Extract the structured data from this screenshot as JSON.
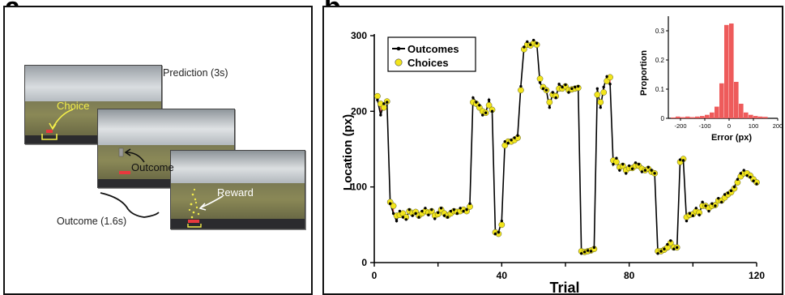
{
  "panel_a": {
    "label": "a",
    "prediction_caption": "Prediction (3s)",
    "outcome_caption": "Outcome (1.6s)",
    "choice_label": "Choice",
    "outcome_label": "Outcome",
    "reward_label": "Reward"
  },
  "panel_b": {
    "label": "b"
  },
  "colors": {
    "outcome_line": "#000000",
    "choice_fill": "#f2e51c",
    "connector": "#e8383d",
    "histogram": "#ee5b5b",
    "annotation_yellow": "#f3ee4a"
  },
  "chart_data": [
    {
      "type": "line",
      "xlabel": "Trial",
      "ylabel": "Location (px)",
      "xlim": [
        0,
        120
      ],
      "ylim": [
        0,
        300
      ],
      "xticks": [
        0,
        40,
        80,
        120
      ],
      "yticks": [
        0,
        100,
        200,
        300
      ],
      "grid": false,
      "legend_position": "top-left",
      "series": [
        {
          "name": "Outcomes",
          "marker": "small black dot",
          "values": [
            215,
            195,
            210,
            212,
            78,
            65,
            55,
            68,
            60,
            57,
            70,
            62,
            65,
            60,
            68,
            72,
            63,
            70,
            58,
            66,
            72,
            62,
            60,
            68,
            70,
            65,
            72,
            68,
            70,
            78,
            218,
            212,
            208,
            195,
            198,
            215,
            200,
            38,
            40,
            55,
            160,
            158,
            162,
            165,
            168,
            233,
            285,
            292,
            288,
            294,
            290,
            238,
            230,
            228,
            205,
            225,
            218,
            236,
            232,
            235,
            225,
            230,
            232,
            233,
            12,
            14,
            16,
            15,
            20,
            230,
            205,
            232,
            246,
            236,
            130,
            138,
            122,
            130,
            118,
            128,
            124,
            132,
            130,
            120,
            122,
            126,
            122,
            118,
            12,
            15,
            18,
            24,
            29,
            18,
            20,
            136,
            135,
            55,
            65,
            62,
            72,
            63,
            80,
            75,
            68,
            78,
            75,
            85,
            80,
            90,
            92,
            95,
            100,
            110,
            118,
            122,
            115,
            113,
            108,
            104
          ],
          "x_start": 1
        },
        {
          "name": "Choices",
          "marker": "yellow circle",
          "values": [
            220,
            210,
            205,
            213,
            80,
            75,
            62,
            63,
            65,
            60,
            68,
            65,
            67,
            62,
            65,
            68,
            66,
            68,
            62,
            64,
            70,
            65,
            62,
            65,
            68,
            67,
            68,
            70,
            68,
            74,
            212,
            210,
            205,
            200,
            198,
            208,
            202,
            40,
            38,
            50,
            155,
            160,
            160,
            162,
            165,
            228,
            282,
            288,
            287,
            290,
            288,
            243,
            232,
            228,
            212,
            222,
            220,
            230,
            230,
            233,
            228,
            229,
            230,
            231,
            15,
            14,
            15,
            16,
            18,
            222,
            212,
            225,
            240,
            245,
            135,
            133,
            126,
            128,
            122,
            125,
            125,
            128,
            128,
            124,
            122,
            124,
            120,
            118,
            15,
            15,
            17,
            20,
            26,
            20,
            20,
            133,
            137,
            60,
            63,
            64,
            68,
            66,
            75,
            75,
            72,
            75,
            76,
            82,
            82,
            86,
            90,
            93,
            98,
            106,
            114,
            118,
            118,
            115,
            110,
            106
          ],
          "x_start": 1
        }
      ]
    },
    {
      "type": "bar",
      "xlabel": "Error (px)",
      "ylabel": "Proportion",
      "xlim": [
        -250,
        200
      ],
      "ylim": [
        0,
        0.35
      ],
      "xticks": [
        -200,
        -100,
        0,
        100,
        200
      ],
      "yticks": [
        0,
        0.1,
        0.2,
        0.3
      ],
      "bin_width": 20,
      "bin_centers": [
        -230,
        -210,
        -190,
        -170,
        -150,
        -130,
        -110,
        -90,
        -70,
        -50,
        -30,
        -10,
        10,
        30,
        50,
        70,
        90,
        110,
        130,
        150
      ],
      "values": [
        0.003,
        0.006,
        0.004,
        0.006,
        0.004,
        0.006,
        0.008,
        0.012,
        0.02,
        0.04,
        0.12,
        0.32,
        0.325,
        0.125,
        0.05,
        0.02,
        0.012,
        0.008,
        0.006,
        0.005
      ]
    }
  ]
}
